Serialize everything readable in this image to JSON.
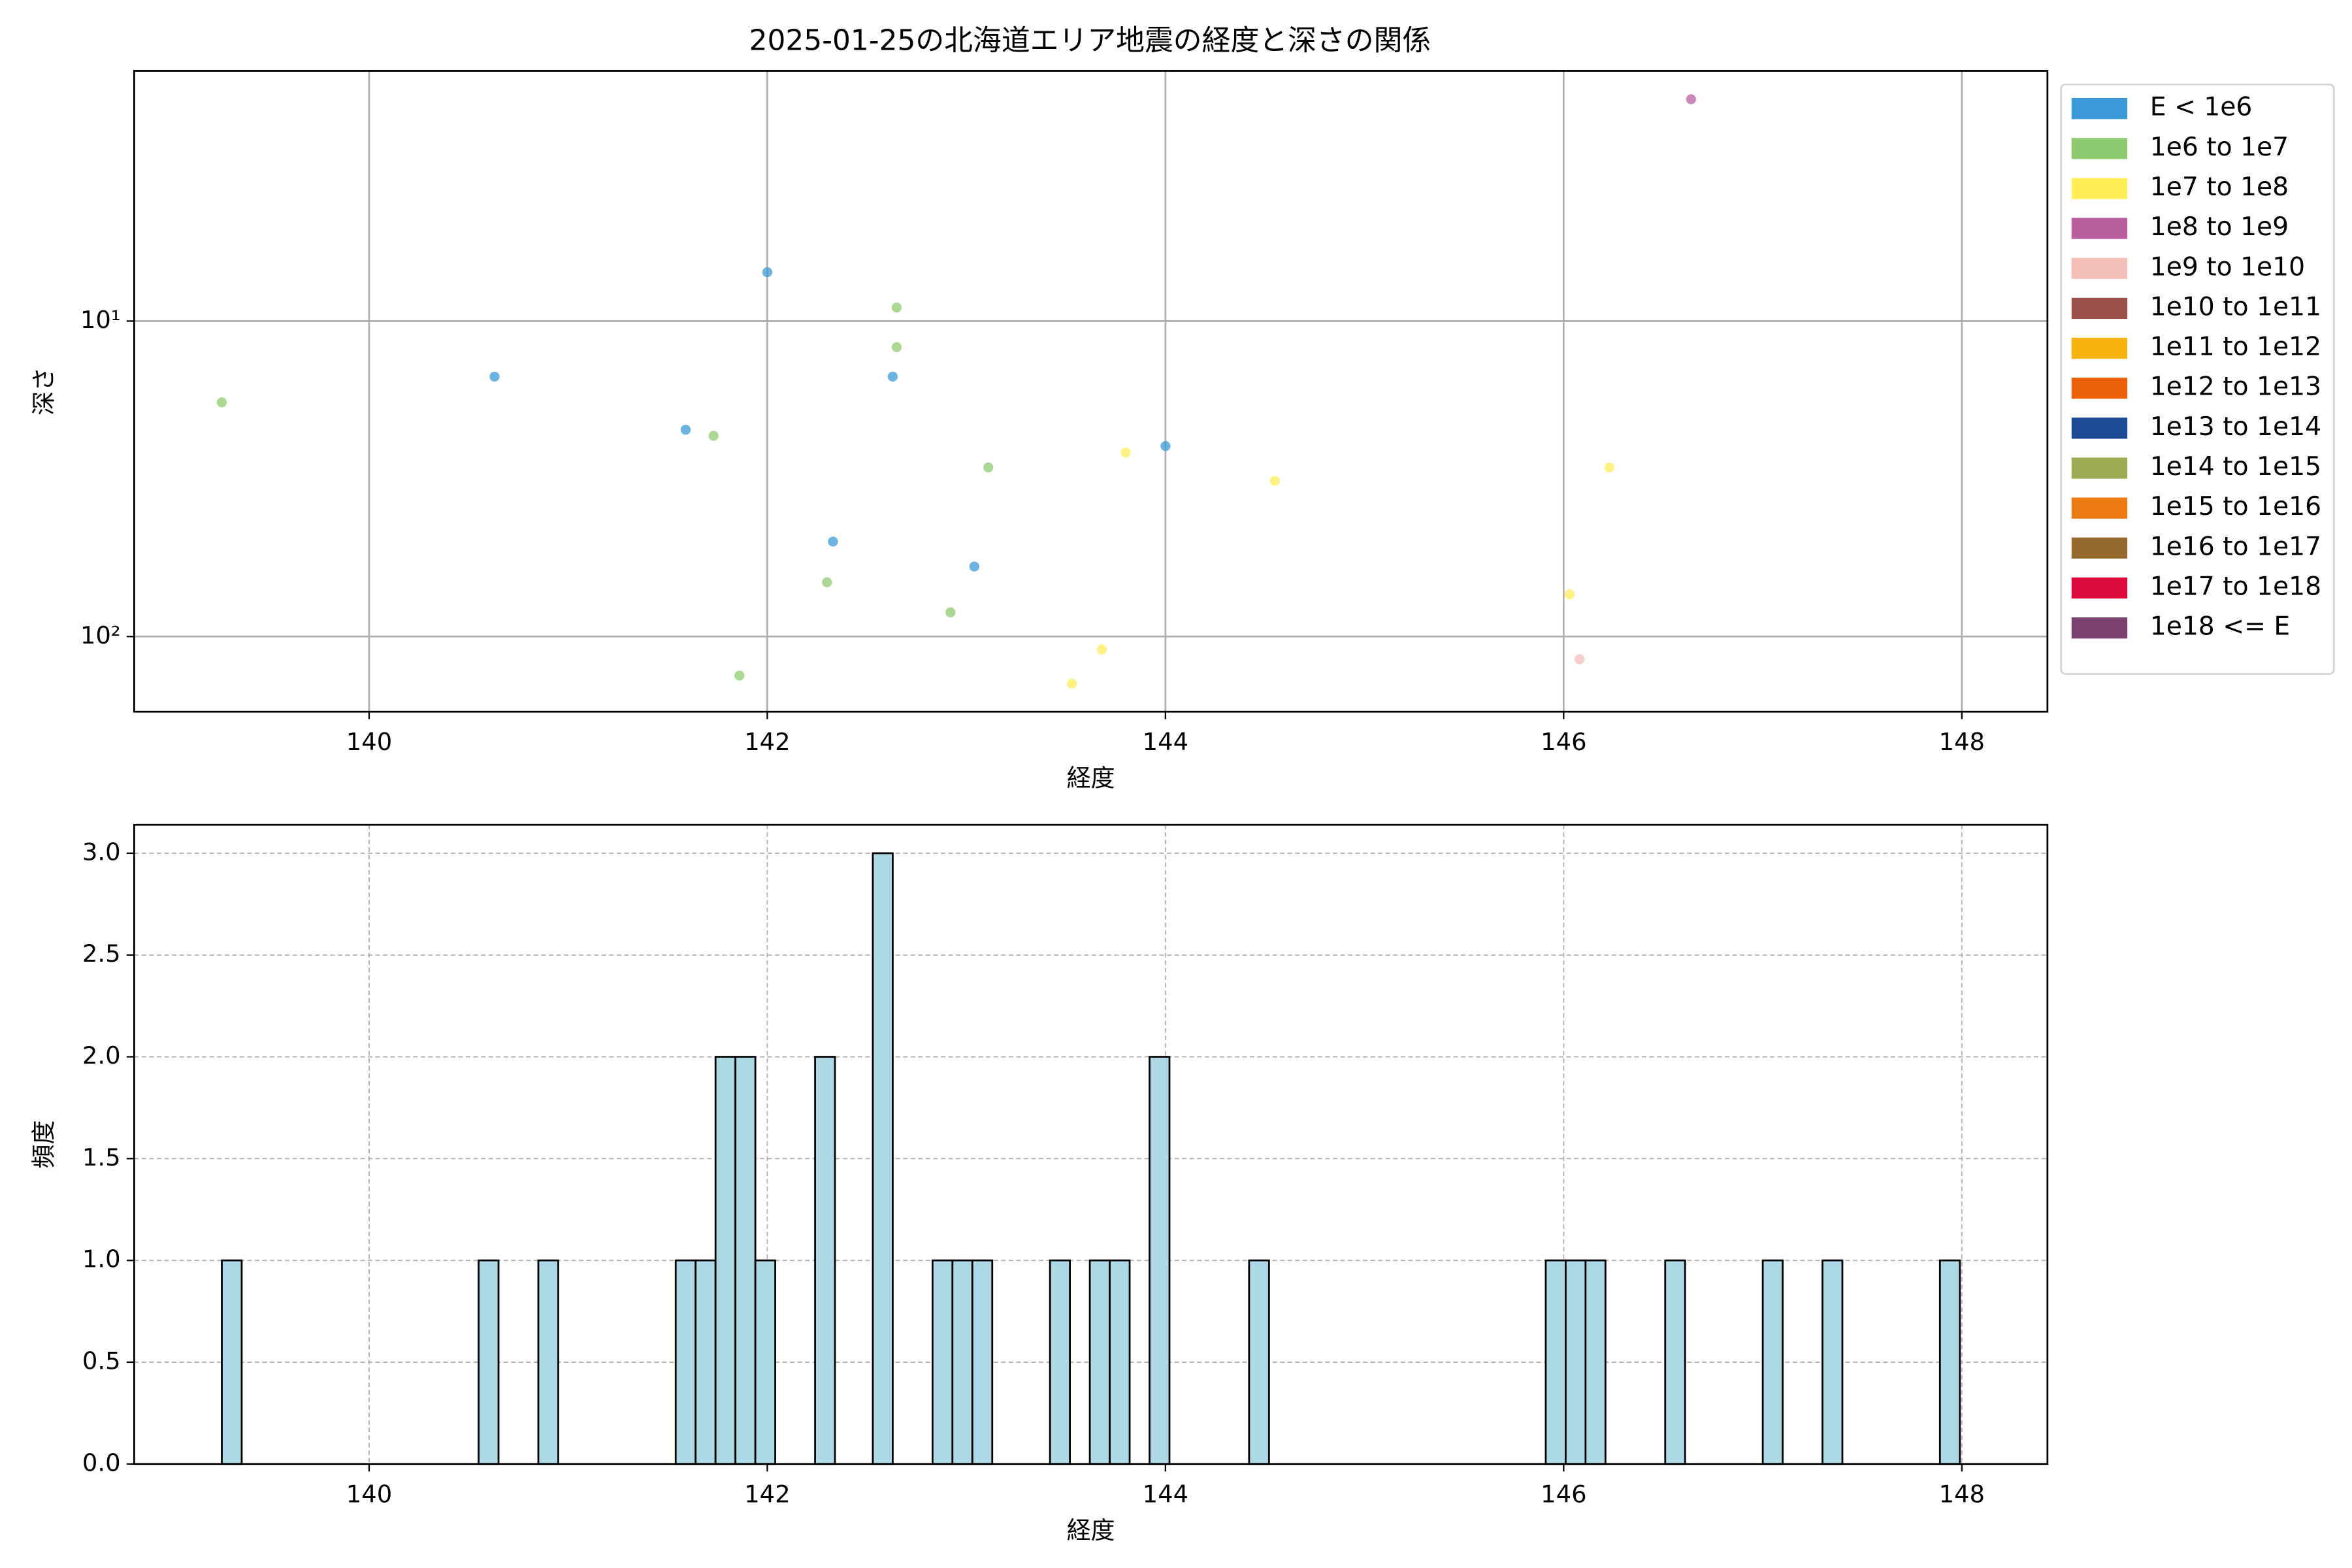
{
  "chart_data": [
    {
      "type": "scatter",
      "title": "2025-01-25の北海道エリア地震の経度と深さの関係",
      "xlabel": "経度",
      "ylabel": "深さ",
      "xlim": [
        138.82,
        148.43
      ],
      "xticks": [
        140,
        142,
        144,
        146,
        148
      ],
      "yscale": "log",
      "y_inverted": true,
      "ylim": [
        1.61,
        173
      ],
      "yticks": [
        {
          "value": 10,
          "label": "10¹"
        },
        {
          "value": 100,
          "label": "10²"
        }
      ],
      "grid": true,
      "legend": "outside right",
      "series": [
        {
          "name": "E < 1e6",
          "color": "#3a9ad9",
          "x": [
            140.63,
            141.59,
            142.0,
            142.63,
            142.33,
            143.04,
            144.0
          ],
          "y": [
            15.0,
            22.1,
            7.0,
            15.0,
            50,
            60,
            24.9
          ]
        },
        {
          "name": "1e6 to 1e7",
          "color": "#8dc96e",
          "x": [
            139.26,
            141.73,
            142.65,
            142.65,
            143.11,
            142.3,
            142.92,
            141.86
          ],
          "y": [
            18.1,
            23.1,
            9.06,
            12.1,
            29.1,
            67.3,
            83.8,
            133
          ]
        },
        {
          "name": "1e7 to 1e8",
          "color": "#ffee58",
          "x": [
            143.8,
            144.55,
            146.23,
            146.03,
            143.68,
            143.53
          ],
          "y": [
            26.1,
            32.1,
            29.1,
            73.5,
            110,
            141
          ]
        },
        {
          "name": "1e8 to 1e9",
          "color": "#b95fa0",
          "x": [
            146.64
          ],
          "y": [
            1.98
          ]
        },
        {
          "name": "1e9 to 1e10",
          "color": "#f4bfb8",
          "x": [
            146.08
          ],
          "y": [
            118
          ]
        },
        {
          "name": "1e10 to 1e11",
          "color": "#9a5147",
          "x": [],
          "y": []
        },
        {
          "name": "1e11 to 1e12",
          "color": "#f6b40f",
          "x": [],
          "y": []
        },
        {
          "name": "1e12 to 1e13",
          "color": "#ec6107",
          "x": [],
          "y": []
        },
        {
          "name": "1e13 to 1e14",
          "color": "#1b4a93",
          "x": [],
          "y": []
        },
        {
          "name": "1e14 to 1e15",
          "color": "#9dac54",
          "x": [],
          "y": []
        },
        {
          "name": "1e15 to 1e16",
          "color": "#ec7a12",
          "x": [],
          "y": []
        },
        {
          "name": "1e16 to 1e17",
          "color": "#956a2c",
          "x": [],
          "y": []
        },
        {
          "name": "1e17 to 1e18",
          "color": "#dc0a3c",
          "x": [],
          "y": []
        },
        {
          "name": "1e18 <= E",
          "color": "#7b416e",
          "x": [],
          "y": []
        }
      ]
    },
    {
      "type": "histogram",
      "xlabel": "経度",
      "ylabel": "頻度",
      "xlim": [
        138.82,
        148.43
      ],
      "xticks": [
        140,
        142,
        144,
        146,
        148
      ],
      "ylim": [
        0,
        3.14
      ],
      "yticks": [
        {
          "value": 0,
          "label": "0.0"
        },
        {
          "value": 0.5,
          "label": "0.5"
        },
        {
          "value": 1,
          "label": "1.0"
        },
        {
          "value": 1.5,
          "label": "1.5"
        },
        {
          "value": 2,
          "label": "2.0"
        },
        {
          "value": 2.5,
          "label": "2.5"
        },
        {
          "value": 3,
          "label": "3.0"
        }
      ],
      "grid": "dashed",
      "color": "#add8e6",
      "edgecolor": "#000000",
      "bins": [
        139.26,
        139.36,
        140.55,
        140.65,
        140.85,
        140.95,
        141.54,
        141.64,
        141.74,
        141.84,
        141.94,
        142.04,
        142.24,
        142.34,
        142.53,
        142.63,
        142.83,
        142.93,
        143.03,
        143.13,
        143.42,
        143.52,
        143.62,
        143.72,
        143.82,
        143.92,
        144.02,
        144.42,
        144.52,
        145.91,
        146.01,
        146.11,
        146.21,
        146.51,
        146.61,
        147.0,
        147.1,
        147.3,
        147.4,
        147.89,
        147.99
      ],
      "counts": [
        1,
        0,
        1,
        0,
        1,
        0,
        1,
        1,
        2,
        2,
        1,
        0,
        2,
        0,
        3,
        0,
        1,
        1,
        1,
        0,
        1,
        0,
        1,
        1,
        0,
        2,
        0,
        1,
        0,
        1,
        1,
        1,
        0,
        1,
        0,
        1,
        0,
        1,
        0,
        1
      ]
    }
  ]
}
